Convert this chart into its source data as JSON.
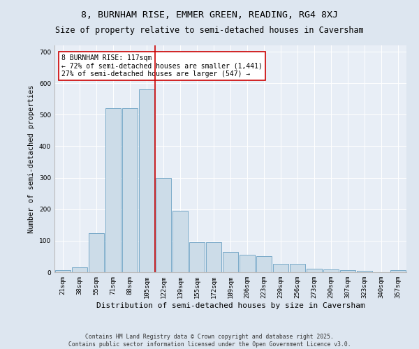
{
  "title": "8, BURNHAM RISE, EMMER GREEN, READING, RG4 8XJ",
  "subtitle": "Size of property relative to semi-detached houses in Caversham",
  "xlabel": "Distribution of semi-detached houses by size in Caversham",
  "ylabel": "Number of semi-detached properties",
  "categories": [
    "21sqm",
    "38sqm",
    "55sqm",
    "71sqm",
    "88sqm",
    "105sqm",
    "122sqm",
    "139sqm",
    "155sqm",
    "172sqm",
    "189sqm",
    "206sqm",
    "223sqm",
    "239sqm",
    "256sqm",
    "273sqm",
    "290sqm",
    "307sqm",
    "323sqm",
    "340sqm",
    "357sqm"
  ],
  "values": [
    7,
    15,
    125,
    520,
    520,
    580,
    300,
    195,
    95,
    95,
    65,
    55,
    50,
    27,
    27,
    10,
    8,
    7,
    5,
    0,
    7
  ],
  "bar_color": "#ccdce8",
  "bar_edge_color": "#7aaac8",
  "vline_color": "#cc0000",
  "annotation_title": "8 BURNHAM RISE: 117sqm",
  "annotation_line1": "← 72% of semi-detached houses are smaller (1,441)",
  "annotation_line2": "27% of semi-detached houses are larger (547) →",
  "annotation_box_color": "#ffffff",
  "annotation_box_edge": "#cc0000",
  "background_color": "#dde6f0",
  "plot_bg_color": "#e8eef6",
  "footer1": "Contains HM Land Registry data © Crown copyright and database right 2025.",
  "footer2": "Contains public sector information licensed under the Open Government Licence v3.0.",
  "ylim": [
    0,
    720
  ],
  "title_fontsize": 9.5,
  "subtitle_fontsize": 8.5,
  "tick_fontsize": 6.5,
  "ylabel_fontsize": 7.5,
  "xlabel_fontsize": 8,
  "footer_fontsize": 5.8,
  "annot_fontsize": 7
}
